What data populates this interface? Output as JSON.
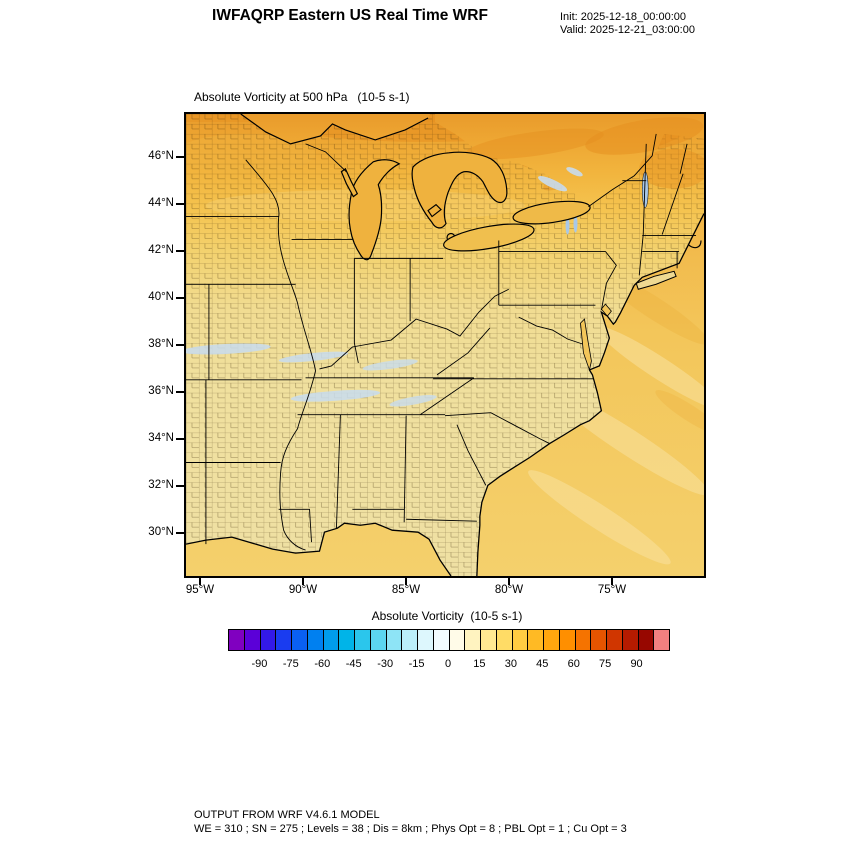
{
  "header": {
    "title": "IWFAQRP Eastern US Real Time WRF",
    "init_line": "Init: 2025-12-18_00:00:00",
    "valid_line": "Valid: 2025-12-21_03:00:00"
  },
  "plot": {
    "title": "Absolute Vorticity at 500 hPa   (10-5 s-1)"
  },
  "axes": {
    "y_ticks": [
      "46°N",
      "44°N",
      "42°N",
      "40°N",
      "38°N",
      "36°N",
      "34°N",
      "32°N",
      "30°N"
    ],
    "x_ticks": [
      "95°W",
      "90°W",
      "85°W",
      "80°W",
      "75°W"
    ]
  },
  "colorbar": {
    "title": "Absolute Vorticity  (10-5 s-1)",
    "tick_labels": [
      "-90",
      "-75",
      "-60",
      "-45",
      "-30",
      "-15",
      "0",
      "15",
      "30",
      "45",
      "60",
      "75",
      "90"
    ],
    "min": -105,
    "max": 105,
    "colors": [
      "#8000C0",
      "#5B00D8",
      "#3319E8",
      "#1A3CF0",
      "#0A60F2",
      "#0080F0",
      "#009CEC",
      "#00B4E8",
      "#2BC6EC",
      "#5CD6F0",
      "#8EE4F6",
      "#BBEFFA",
      "#DDF7FD",
      "#F3FCFF",
      "#FFFBE8",
      "#FFF3C0",
      "#FFE992",
      "#FFDC66",
      "#FFCC42",
      "#FFBA24",
      "#FFA60E",
      "#FF8F00",
      "#F57300",
      "#E55400",
      "#D03600",
      "#B51B00",
      "#970700",
      "#F28080"
    ]
  },
  "footer": {
    "line1": "OUTPUT FROM WRF V4.6.1 MODEL",
    "line2": "WE = 310 ; SN = 275 ; Levels = 38 ; Dis = 8km ; Phys Opt = 8 ; PBL Opt = 1 ; Cu Opt = 3"
  },
  "chart_data": {
    "type": "heatmap",
    "title": "Absolute Vorticity at 500 hPa",
    "units": "10-5 s-1",
    "x_tick_labels": [
      "95°W",
      "90°W",
      "85°W",
      "80°W",
      "75°W"
    ],
    "y_tick_labels": [
      "46°N",
      "44°N",
      "42°N",
      "40°N",
      "38°N",
      "36°N",
      "34°N",
      "32°N",
      "30°N"
    ],
    "colorbar": {
      "min": -105,
      "max": 105,
      "tick_values": [
        -90,
        -75,
        -60,
        -45,
        -30,
        -15,
        0,
        15,
        30,
        45,
        60,
        75,
        90
      ],
      "orientation": "horizontal",
      "position": "bottom"
    },
    "field_summary": [
      {
        "region": "northern band of domain (~44N-48N, Great Lakes northward)",
        "approx_value_range": "25 to 60"
      },
      {
        "region": "upper Midwest / Lake Michigan area",
        "approx_value_range": "15 to 35"
      },
      {
        "region": "central and southern domain (Ohio Valley, Southeast, Gulf coast)",
        "approx_value_range": "0 to 15"
      },
      {
        "region": "scattered streaks near 36N-38N (Tennessee/Kentucky) and small patches near St. Lawrence",
        "approx_value_range": "-15 to 0"
      },
      {
        "region": "western Atlantic offshore",
        "approx_value_range": "5 to 25"
      }
    ],
    "grid": false,
    "overlays": [
      "US state borders",
      "US county borders",
      "Great Lakes",
      "Atlantic and Gulf coastlines"
    ]
  }
}
